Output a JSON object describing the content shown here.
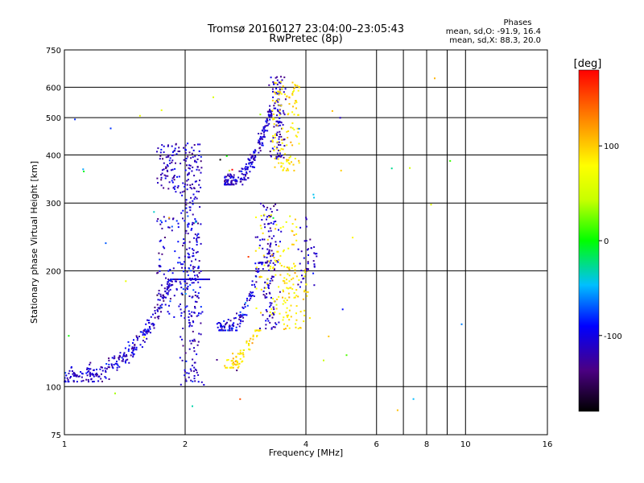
{
  "chart_data": {
    "type": "scatter",
    "title": "Tromsø 20160127 23:04:00–23:05:43",
    "subtitle": "RwPretec (8p)",
    "xlabel": "Frequency [MHz]",
    "ylabel": "Stationary phase Virtual Height [km]",
    "x_scale": "log",
    "y_scale": "log",
    "xlim": [
      1,
      16
    ],
    "ylim": [
      75,
      750
    ],
    "x_ticks": [
      1,
      2,
      4,
      6,
      8,
      10,
      16
    ],
    "x_minor_ticks": [
      7,
      9
    ],
    "y_ticks": [
      75,
      100,
      200,
      300,
      400,
      500,
      600,
      750
    ],
    "grid": true,
    "phase_info": {
      "header": "Phases",
      "line_o": "mean, sd,O: -91.9, 16.4",
      "line_x": "mean, sd,X:  88.3, 20.0"
    },
    "colorbar": {
      "label": "[deg]",
      "range": [
        -180,
        180
      ],
      "ticks": [
        100,
        0,
        -100
      ]
    },
    "clusters": [
      {
        "x": [
          1.0,
          2.3
        ],
        "y": [
          103,
          190
        ],
        "shape": "curve",
        "x0": 1.0,
        "y0": 106,
        "k": 2.4,
        "p": 2.6,
        "n": 420,
        "phase": -110,
        "phase_sd": 15
      },
      {
        "x": [
          1.9,
          2.25
        ],
        "y": [
          100,
          330
        ],
        "shape": "vertical",
        "n": 170,
        "phase": -110,
        "phase_sd": 15
      },
      {
        "x": [
          1.7,
          2.2
        ],
        "y": [
          150,
          280
        ],
        "shape": "cloud",
        "n": 120,
        "phase": -105,
        "phase_sd": 20
      },
      {
        "x": [
          1.7,
          2.2
        ],
        "y": [
          320,
          430
        ],
        "shape": "cloud",
        "n": 150,
        "phase": -110,
        "phase_sd": 15
      },
      {
        "x": [
          2.4,
          3.2
        ],
        "y": [
          140,
          210
        ],
        "shape": "curve",
        "x0": 2.4,
        "y0": 140,
        "k": 0.9,
        "p": 3.0,
        "n": 130,
        "phase": -105,
        "phase_sd": 18
      },
      {
        "x": [
          2.5,
          3.3
        ],
        "y": [
          335,
          520
        ],
        "shape": "curve",
        "x0": 2.5,
        "y0": 340,
        "k": 0.6,
        "p": 2.5,
        "n": 200,
        "phase": -110,
        "phase_sd": 15
      },
      {
        "x": [
          2.5,
          3.1
        ],
        "y": [
          112,
          140
        ],
        "shape": "curve",
        "x0": 2.5,
        "y0": 113,
        "k": 0.35,
        "p": 2.0,
        "n": 70,
        "phase": 90,
        "phase_sd": 15
      },
      {
        "x": [
          3.0,
          3.5
        ],
        "y": [
          140,
          300
        ],
        "shape": "vertical",
        "n": 140,
        "phase": -112,
        "phase_sd": 15
      },
      {
        "x": [
          3.0,
          3.8
        ],
        "y": [
          150,
          280
        ],
        "shape": "cloud",
        "n": 90,
        "phase": 88,
        "phase_sd": 15
      },
      {
        "x": [
          3.2,
          3.6
        ],
        "y": [
          390,
          640
        ],
        "shape": "vertical",
        "n": 110,
        "phase": -115,
        "phase_sd": 15
      },
      {
        "x": [
          3.3,
          3.85
        ],
        "y": [
          360,
          620
        ],
        "shape": "cloud",
        "n": 120,
        "phase": 90,
        "phase_sd": 12
      },
      {
        "x": [
          3.5,
          4.1
        ],
        "y": [
          140,
          210
        ],
        "shape": "cloud",
        "n": 70,
        "phase": 90,
        "phase_sd": 12
      },
      {
        "x": [
          3.8,
          4.3
        ],
        "y": [
          180,
          280
        ],
        "shape": "cloud",
        "n": 40,
        "phase": -110,
        "phase_sd": 15
      },
      {
        "x": [
          1.0,
          10.0
        ],
        "y": [
          80,
          640
        ],
        "shape": "cloud",
        "n": 45,
        "phase": 0,
        "phase_sd": 90
      }
    ]
  }
}
